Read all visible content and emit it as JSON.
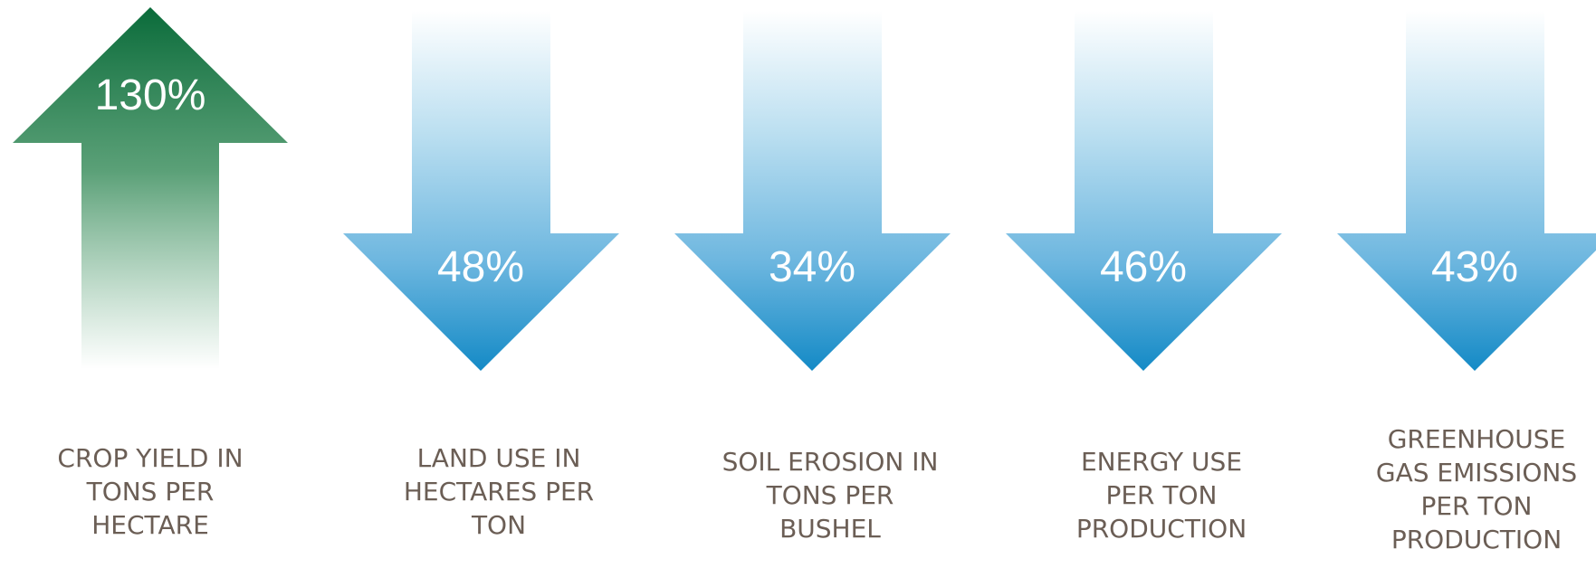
{
  "metrics": [
    {
      "value": "130%",
      "label": "CROP YIELD IN TONS PER HECTARE",
      "direction": "up",
      "color": "#0a6b3a"
    },
    {
      "value": "48%",
      "label": "LAND USE IN HECTARES PER TON",
      "direction": "down",
      "color": "#1a8dc6"
    },
    {
      "value": "34%",
      "label": "SOIL EROSION IN TONS PER BUSHEL",
      "direction": "down",
      "color": "#1a8dc6"
    },
    {
      "value": "46%",
      "label": "ENERGY USE PER TON PRODUCTION",
      "direction": "down",
      "color": "#1a8dc6"
    },
    {
      "value": "43%",
      "label": "GREENHOUSE GAS EMISSIONS PER TON PRODUCTION",
      "direction": "down",
      "color": "#1a8dc6"
    }
  ]
}
